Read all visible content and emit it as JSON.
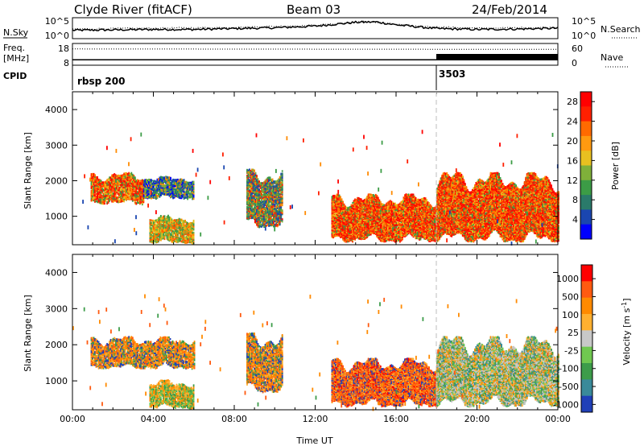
{
  "header": {
    "site": "Clyde River (fitACF)",
    "beam": "Beam 03",
    "date": "24/Feb/2014"
  },
  "chart_data": [
    {
      "type": "line",
      "panel": "noise",
      "left_label": "N.Sky",
      "right_label": "N.Search",
      "left_ticks": [
        "10^5",
        "10^0"
      ],
      "right_ticks": [
        "10^5",
        "10^0"
      ],
      "x_range_hours": [
        0,
        24
      ],
      "series": [
        {
          "style": "solid",
          "approx_log10_values": [
            {
              "t": 0,
              "v": 2.0
            },
            {
              "t": 2,
              "v": 2.1
            },
            {
              "t": 4,
              "v": 2.2
            },
            {
              "t": 6,
              "v": 2.2
            },
            {
              "t": 8,
              "v": 2.4
            },
            {
              "t": 10,
              "v": 2.6
            },
            {
              "t": 12,
              "v": 3.0
            },
            {
              "t": 14,
              "v": 3.9
            },
            {
              "t": 15,
              "v": 4.0
            },
            {
              "t": 16,
              "v": 3.3
            },
            {
              "t": 18,
              "v": 2.4
            },
            {
              "t": 20,
              "v": 2.2
            },
            {
              "t": 22,
              "v": 2.3
            },
            {
              "t": 24,
              "v": 2.5
            }
          ]
        },
        {
          "style": "dotted",
          "approx_log10_values": [
            {
              "t": 0,
              "v": 2.3
            },
            {
              "t": 4,
              "v": 2.5
            },
            {
              "t": 8,
              "v": 2.7
            },
            {
              "t": 12,
              "v": 3.2
            },
            {
              "t": 14.5,
              "v": 4.1
            },
            {
              "t": 17,
              "v": 3.0
            },
            {
              "t": 20,
              "v": 2.5
            },
            {
              "t": 24,
              "v": 2.7
            }
          ]
        }
      ]
    },
    {
      "type": "line",
      "panel": "frequency-nave",
      "left_label_top": "Freq.",
      "left_label_bottom": "[MHz]",
      "right_label": "Nave",
      "left_ticks": [
        "18",
        "8"
      ],
      "right_ticks": [
        "60",
        "0"
      ],
      "x_range_hours": [
        0,
        24
      ],
      "series": [
        {
          "name": "Freq.",
          "style": "solid",
          "approx_values": [
            {
              "t": 0,
              "v": 10.5
            },
            {
              "t": 18,
              "v": 10.5
            },
            {
              "t": 24,
              "v": 10.5
            }
          ]
        },
        {
          "name": "Nave",
          "style": "dotted",
          "approx_values": [
            {
              "t": 0,
              "v": 45
            },
            {
              "t": 18,
              "v": 44
            },
            {
              "t": 24,
              "v": 44
            }
          ]
        }
      ]
    },
    {
      "type": "table",
      "panel": "cpid",
      "label": "CPID",
      "segments": [
        {
          "start": 0,
          "end": 18,
          "text": "rbsp 200"
        },
        {
          "start": 18,
          "end": 24,
          "text": "3503"
        }
      ]
    },
    {
      "type": "heatmap",
      "panel": "power",
      "ylabel": "Slant Range [km]",
      "xlabel": "",
      "ylim": [
        200,
        4500
      ],
      "yticks": [
        1000,
        2000,
        3000,
        4000
      ],
      "xlim": [
        0,
        24
      ],
      "colorbar": {
        "label": "Power [dB]",
        "ticks": [
          "4",
          "8",
          "12",
          "16",
          "20",
          "24",
          "28"
        ],
        "colors": [
          "#0000ff",
          "#1a46b0",
          "#2a7a6a",
          "#3c9c46",
          "#7fb03a",
          "#e8c020",
          "#ff9a10",
          "#ff6a00",
          "#ff2000",
          "#ff0000"
        ]
      },
      "approx_regions": [
        {
          "t0": 0.9,
          "t1": 3.5,
          "r0": 1350,
          "r1": 2200,
          "dominant": "red-orange"
        },
        {
          "t0": 3.5,
          "t1": 6.0,
          "r0": 1500,
          "r1": 2100,
          "dominant": "green-blue"
        },
        {
          "t0": 3.8,
          "t1": 6.0,
          "r0": 250,
          "r1": 1000,
          "dominant": "orange-green"
        },
        {
          "t0": 8.6,
          "t1": 10.4,
          "r0": 700,
          "r1": 2300,
          "dominant": "mixed"
        },
        {
          "t0": 12.8,
          "t1": 18.0,
          "r0": 300,
          "r1": 1600,
          "dominant": "red"
        },
        {
          "t0": 18.0,
          "t1": 24.0,
          "r0": 300,
          "r1": 2200,
          "dominant": "red"
        }
      ]
    },
    {
      "type": "heatmap",
      "panel": "velocity",
      "ylabel": "Slant Range [km]",
      "xlabel": "Time UT",
      "ylim": [
        200,
        4500
      ],
      "yticks": [
        1000,
        2000,
        3000,
        4000
      ],
      "xlim": [
        0,
        24
      ],
      "xtick_labels": [
        "00:00",
        "04:00",
        "08:00",
        "12:00",
        "16:00",
        "20:00",
        "00:00"
      ],
      "colorbar": {
        "label": "Velocity [m s^-1]",
        "ticks": [
          "1000",
          "500",
          "100",
          "25",
          "-25",
          "-100",
          "-500",
          "-1000"
        ],
        "colors": [
          "#2040b8",
          "#3a8a9a",
          "#3d9c4a",
          "#70c850",
          "#c8c8c8",
          "#ffb030",
          "#ff8a00",
          "#ff5a10",
          "#ff0000"
        ]
      },
      "approx_regions": [
        {
          "t0": 0.9,
          "t1": 6.0,
          "r0": 1350,
          "r1": 2200,
          "dominant": "orange"
        },
        {
          "t0": 3.8,
          "t1": 6.0,
          "r0": 250,
          "r1": 1000,
          "dominant": "orange-green"
        },
        {
          "t0": 8.6,
          "t1": 10.4,
          "r0": 700,
          "r1": 2300,
          "dominant": "orange"
        },
        {
          "t0": 12.8,
          "t1": 18.0,
          "r0": 300,
          "r1": 1600,
          "dominant": "orange-red"
        },
        {
          "t0": 18.0,
          "t1": 24.0,
          "r0": 300,
          "r1": 2200,
          "dominant": "green-gray"
        }
      ]
    }
  ]
}
